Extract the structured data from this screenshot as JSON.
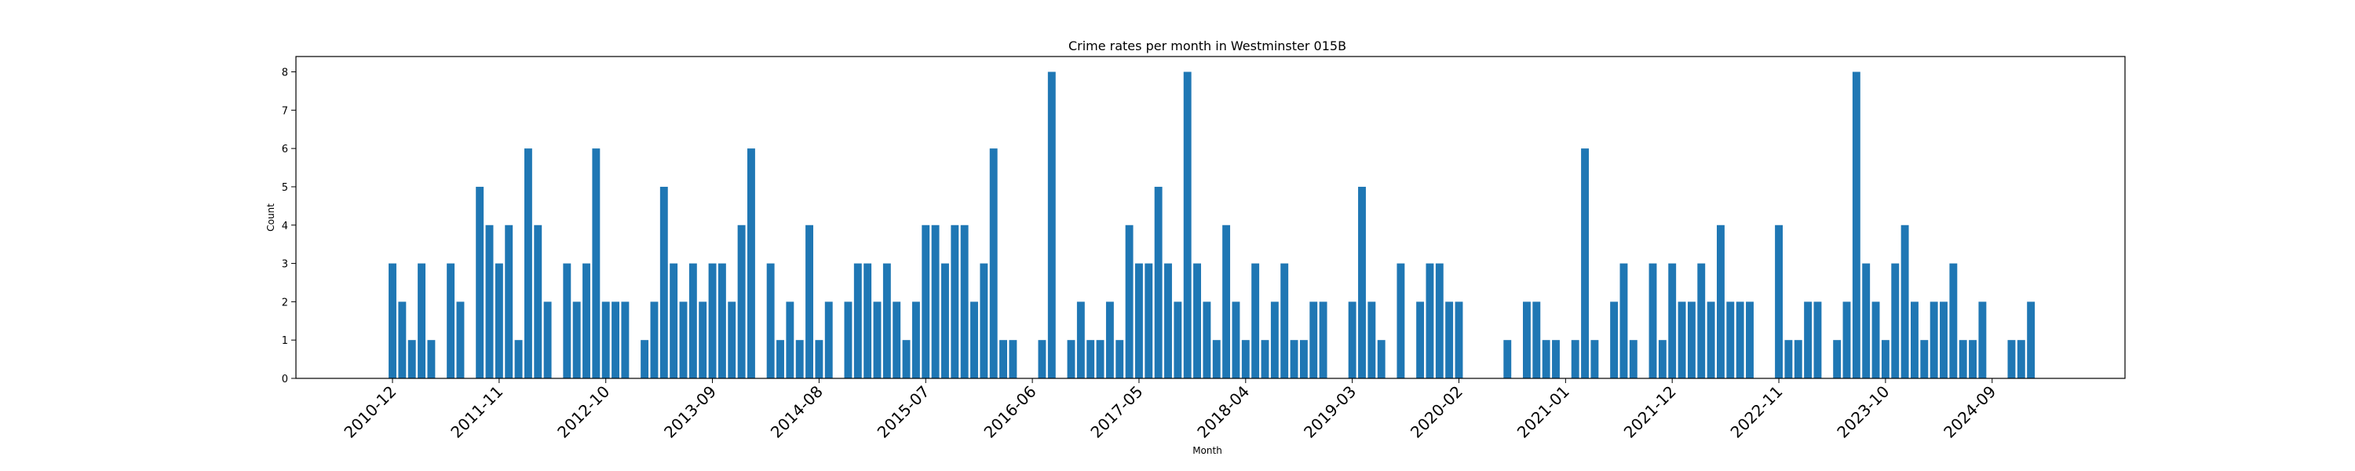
{
  "chart_data": {
    "type": "bar",
    "title": "Crime rates per month in Westminster 015B",
    "xlabel": "Month",
    "ylabel": "Count",
    "ylim": [
      0,
      8.4
    ],
    "yticks": [
      0,
      1,
      2,
      3,
      4,
      5,
      6,
      7,
      8
    ],
    "xtick_labels": [
      "2010-12",
      "2011-11",
      "2012-10",
      "2013-09",
      "2014-08",
      "2015-07",
      "2016-06",
      "2017-05",
      "2018-04",
      "2019-03",
      "2020-02",
      "2021-01",
      "2021-12",
      "2022-11",
      "2023-10",
      "2024-09"
    ],
    "grid": false,
    "bar_color": "#1f77b4",
    "categories": [
      "2010-12",
      "2011-01",
      "2011-02",
      "2011-03",
      "2011-04",
      "2011-05",
      "2011-06",
      "2011-07",
      "2011-08",
      "2011-09",
      "2011-10",
      "2011-11",
      "2011-12",
      "2012-01",
      "2012-02",
      "2012-03",
      "2012-04",
      "2012-05",
      "2012-06",
      "2012-07",
      "2012-08",
      "2012-09",
      "2012-10",
      "2012-11",
      "2012-12",
      "2013-01",
      "2013-02",
      "2013-03",
      "2013-04",
      "2013-05",
      "2013-06",
      "2013-07",
      "2013-08",
      "2013-09",
      "2013-10",
      "2013-11",
      "2013-12",
      "2014-01",
      "2014-02",
      "2014-03",
      "2014-04",
      "2014-05",
      "2014-06",
      "2014-07",
      "2014-08",
      "2014-09",
      "2014-10",
      "2014-11",
      "2014-12",
      "2015-01",
      "2015-02",
      "2015-03",
      "2015-04",
      "2015-05",
      "2015-06",
      "2015-07",
      "2015-08",
      "2015-09",
      "2015-10",
      "2015-11",
      "2015-12",
      "2016-01",
      "2016-02",
      "2016-03",
      "2016-04",
      "2016-05",
      "2016-06",
      "2016-07",
      "2016-08",
      "2016-09",
      "2016-10",
      "2016-11",
      "2016-12",
      "2017-01",
      "2017-02",
      "2017-03",
      "2017-04",
      "2017-05",
      "2017-06",
      "2017-07",
      "2017-08",
      "2017-09",
      "2017-10",
      "2017-11",
      "2017-12",
      "2018-01",
      "2018-02",
      "2018-03",
      "2018-04",
      "2018-05",
      "2018-06",
      "2018-07",
      "2018-08",
      "2018-09",
      "2018-10",
      "2018-11",
      "2018-12",
      "2019-01",
      "2019-02",
      "2019-03",
      "2019-04",
      "2019-05",
      "2019-06",
      "2019-07",
      "2019-08",
      "2019-09",
      "2019-10",
      "2019-11",
      "2019-12",
      "2020-01",
      "2020-02",
      "2020-03",
      "2020-04",
      "2020-05",
      "2020-06",
      "2020-07",
      "2020-08",
      "2020-09",
      "2020-10",
      "2020-11",
      "2020-12",
      "2021-01",
      "2021-02",
      "2021-03",
      "2021-04",
      "2021-05",
      "2021-06",
      "2021-07",
      "2021-08",
      "2021-09",
      "2021-10",
      "2021-11",
      "2021-12",
      "2022-01",
      "2022-02",
      "2022-03",
      "2022-04",
      "2022-05",
      "2022-06",
      "2022-07",
      "2022-08",
      "2022-09",
      "2022-10",
      "2022-11",
      "2022-12",
      "2023-01",
      "2023-02",
      "2023-03",
      "2023-04",
      "2023-05",
      "2023-06",
      "2023-07",
      "2023-08",
      "2023-09",
      "2023-10",
      "2023-11",
      "2023-12",
      "2024-01",
      "2024-02",
      "2024-03",
      "2024-04",
      "2024-05",
      "2024-06",
      "2024-07",
      "2024-08",
      "2024-09",
      "2024-10",
      "2024-11",
      "2024-12",
      "2025-01"
    ],
    "values": [
      3,
      2,
      1,
      3,
      1,
      0,
      3,
      2,
      0,
      5,
      4,
      3,
      4,
      1,
      6,
      4,
      2,
      0,
      3,
      2,
      3,
      6,
      2,
      2,
      2,
      0,
      1,
      2,
      5,
      3,
      2,
      3,
      2,
      3,
      3,
      2,
      4,
      6,
      0,
      3,
      1,
      2,
      1,
      4,
      1,
      2,
      0,
      2,
      3,
      3,
      2,
      3,
      2,
      1,
      2,
      4,
      4,
      3,
      4,
      4,
      2,
      3,
      6,
      1,
      1,
      0,
      0,
      1,
      8,
      0,
      1,
      2,
      1,
      1,
      2,
      1,
      4,
      3,
      3,
      5,
      3,
      2,
      8,
      3,
      2,
      1,
      4,
      2,
      1,
      3,
      1,
      2,
      3,
      1,
      1,
      2,
      2,
      0,
      0,
      2,
      5,
      2,
      1,
      0,
      3,
      0,
      2,
      3,
      3,
      2,
      2,
      0,
      0,
      0,
      0,
      1,
      0,
      2,
      2,
      1,
      1,
      0,
      1,
      6,
      1,
      0,
      2,
      3,
      1,
      0,
      3,
      1,
      3,
      2,
      2,
      3,
      2,
      4,
      2,
      2,
      2,
      0,
      0,
      4,
      1,
      1,
      2,
      2,
      0,
      1,
      2,
      8,
      3,
      2,
      1,
      3,
      4,
      2,
      1,
      2,
      2,
      3,
      1,
      1,
      2,
      0,
      0,
      1,
      1,
      2
    ]
  }
}
